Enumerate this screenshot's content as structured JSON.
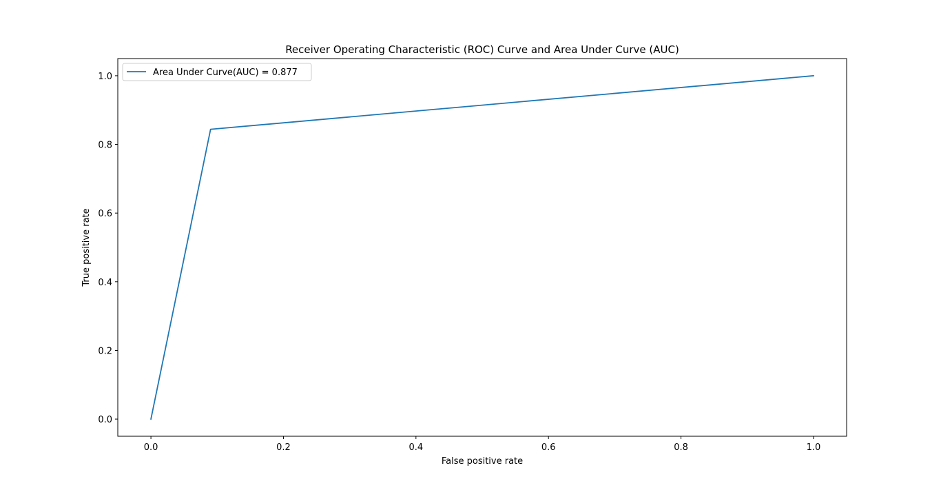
{
  "chart_data": {
    "type": "line",
    "title": "Receiver Operating Characteristic (ROC) Curve and Area Under Curve  (AUC)",
    "xlabel": "False positive rate",
    "ylabel": "True positive rate",
    "xlim": [
      -0.05,
      1.05
    ],
    "ylim": [
      -0.05,
      1.05
    ],
    "xticks": [
      0.0,
      0.2,
      0.4,
      0.6,
      0.8,
      1.0
    ],
    "yticks": [
      0.0,
      0.2,
      0.4,
      0.6,
      0.8,
      1.0
    ],
    "xtick_labels": [
      "0.0",
      "0.2",
      "0.4",
      "0.6",
      "0.8",
      "1.0"
    ],
    "ytick_labels": [
      "0.0",
      "0.2",
      "0.4",
      "0.6",
      "0.8",
      "1.0"
    ],
    "grid": false,
    "legend_position": "top-left",
    "series": [
      {
        "name": "Area Under Curve(AUC) = 0.877",
        "color": "#1f77b4",
        "x": [
          0.0,
          0.09,
          1.0
        ],
        "y": [
          0.0,
          0.844,
          1.0
        ]
      }
    ]
  }
}
